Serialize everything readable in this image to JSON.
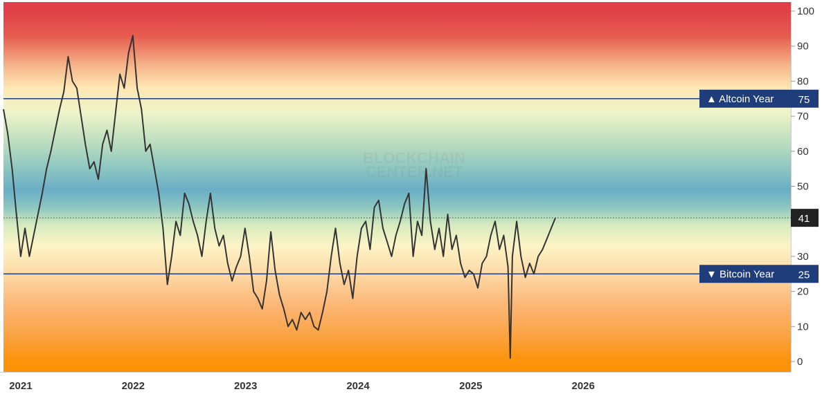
{
  "chart_data": {
    "type": "line",
    "title": "",
    "xlabel": "",
    "ylabel": "",
    "ylim": [
      0,
      100
    ],
    "xlim": [
      "2020-11-15",
      "2027-11-15"
    ],
    "y_ticks": [
      "0",
      "10",
      "20",
      "30",
      "40",
      "50",
      "60",
      "70",
      "80",
      "90",
      "100"
    ],
    "x_ticks": [
      {
        "date": "2021-01-01",
        "label": "2021"
      },
      {
        "date": "2022-01-01",
        "label": "2022"
      },
      {
        "date": "2023-01-01",
        "label": "2023"
      },
      {
        "date": "2024-01-01",
        "label": "2024"
      },
      {
        "date": "2025-01-01",
        "label": "2025"
      },
      {
        "date": "2026-01-01",
        "label": "2026"
      }
    ],
    "grid": false,
    "background_gradient": [
      {
        "value": 100,
        "color": "#e04048"
      },
      {
        "value": 93,
        "color": "#e65b4f"
      },
      {
        "value": 84,
        "color": "#f6b98c"
      },
      {
        "value": 78,
        "color": "#fde8b4"
      },
      {
        "value": 71,
        "color": "#eef4c8"
      },
      {
        "value": 62,
        "color": "#b9dcbf"
      },
      {
        "value": 55,
        "color": "#8cc6c2"
      },
      {
        "value": 49,
        "color": "#6aaec6"
      },
      {
        "value": 44,
        "color": "#8cc6c0"
      },
      {
        "value": 39,
        "color": "#d6ebbe"
      },
      {
        "value": 33,
        "color": "#fdf4c6"
      },
      {
        "value": 25,
        "color": "#fdd9a6"
      },
      {
        "value": 16,
        "color": "#fcb676"
      },
      {
        "value": 7,
        "color": "#fba240"
      },
      {
        "value": 0,
        "color": "#fb9208"
      }
    ],
    "reference_lines": [
      {
        "value": 75,
        "label": "▲ Altcoin Year",
        "value_label": "75",
        "style": "solid",
        "color": "#1f3d7a"
      },
      {
        "value": 25,
        "label": "▼ Bitcoin Year",
        "value_label": "25",
        "style": "solid",
        "color": "#1f3d7a"
      }
    ],
    "current_value": {
      "value": 41,
      "label": "41",
      "style": "dotted"
    },
    "watermark": [
      "BLOCKCHAIN",
      "CENTER.NET"
    ],
    "series": [
      {
        "color": "#333333",
        "points": [
          [
            "2020-11-15",
            72
          ],
          [
            "2020-11-29",
            65
          ],
          [
            "2020-12-13",
            55
          ],
          [
            "2020-12-27",
            42
          ],
          [
            "2021-01-10",
            30
          ],
          [
            "2021-01-24",
            38
          ],
          [
            "2021-02-07",
            30
          ],
          [
            "2021-02-21",
            36
          ],
          [
            "2021-03-07",
            42
          ],
          [
            "2021-03-21",
            48
          ],
          [
            "2021-04-04",
            55
          ],
          [
            "2021-04-18",
            60
          ],
          [
            "2021-05-02",
            66
          ],
          [
            "2021-05-16",
            72
          ],
          [
            "2021-05-30",
            77
          ],
          [
            "2021-06-13",
            87
          ],
          [
            "2021-06-27",
            80
          ],
          [
            "2021-07-11",
            78
          ],
          [
            "2021-07-25",
            70
          ],
          [
            "2021-08-08",
            62
          ],
          [
            "2021-08-22",
            55
          ],
          [
            "2021-09-05",
            57
          ],
          [
            "2021-09-19",
            52
          ],
          [
            "2021-10-03",
            62
          ],
          [
            "2021-10-17",
            66
          ],
          [
            "2021-10-31",
            60
          ],
          [
            "2021-11-14",
            71
          ],
          [
            "2021-11-28",
            82
          ],
          [
            "2021-12-12",
            78
          ],
          [
            "2021-12-26",
            88
          ],
          [
            "2022-01-09",
            93
          ],
          [
            "2022-01-23",
            78
          ],
          [
            "2022-02-06",
            72
          ],
          [
            "2022-02-20",
            60
          ],
          [
            "2022-03-06",
            62
          ],
          [
            "2022-03-20",
            55
          ],
          [
            "2022-04-03",
            48
          ],
          [
            "2022-04-17",
            38
          ],
          [
            "2022-05-01",
            22
          ],
          [
            "2022-05-15",
            30
          ],
          [
            "2022-05-29",
            40
          ],
          [
            "2022-06-12",
            36
          ],
          [
            "2022-06-26",
            48
          ],
          [
            "2022-07-10",
            45
          ],
          [
            "2022-07-24",
            40
          ],
          [
            "2022-08-07",
            36
          ],
          [
            "2022-08-21",
            30
          ],
          [
            "2022-09-04",
            40
          ],
          [
            "2022-09-18",
            48
          ],
          [
            "2022-10-02",
            38
          ],
          [
            "2022-10-16",
            33
          ],
          [
            "2022-10-30",
            36
          ],
          [
            "2022-11-13",
            28
          ],
          [
            "2022-11-27",
            23
          ],
          [
            "2022-12-11",
            27
          ],
          [
            "2022-12-25",
            30
          ],
          [
            "2023-01-08",
            38
          ],
          [
            "2023-01-22",
            30
          ],
          [
            "2023-02-05",
            20
          ],
          [
            "2023-02-19",
            18
          ],
          [
            "2023-03-05",
            15
          ],
          [
            "2023-03-19",
            23
          ],
          [
            "2023-04-02",
            37
          ],
          [
            "2023-04-16",
            26
          ],
          [
            "2023-04-30",
            19
          ],
          [
            "2023-05-14",
            15
          ],
          [
            "2023-05-28",
            10
          ],
          [
            "2023-06-11",
            12
          ],
          [
            "2023-06-25",
            9
          ],
          [
            "2023-07-09",
            14
          ],
          [
            "2023-07-23",
            12
          ],
          [
            "2023-08-06",
            14
          ],
          [
            "2023-08-20",
            10
          ],
          [
            "2023-09-03",
            9
          ],
          [
            "2023-09-17",
            14
          ],
          [
            "2023-10-01",
            20
          ],
          [
            "2023-10-15",
            30
          ],
          [
            "2023-10-29",
            38
          ],
          [
            "2023-11-12",
            28
          ],
          [
            "2023-11-26",
            22
          ],
          [
            "2023-12-10",
            26
          ],
          [
            "2023-12-24",
            18
          ],
          [
            "2024-01-07",
            30
          ],
          [
            "2024-01-21",
            38
          ],
          [
            "2024-02-04",
            40
          ],
          [
            "2024-02-18",
            32
          ],
          [
            "2024-03-03",
            44
          ],
          [
            "2024-03-17",
            46
          ],
          [
            "2024-03-31",
            38
          ],
          [
            "2024-04-14",
            34
          ],
          [
            "2024-04-28",
            30
          ],
          [
            "2024-05-12",
            36
          ],
          [
            "2024-05-26",
            40
          ],
          [
            "2024-06-09",
            45
          ],
          [
            "2024-06-23",
            48
          ],
          [
            "2024-07-07",
            30
          ],
          [
            "2024-07-21",
            40
          ],
          [
            "2024-08-04",
            36
          ],
          [
            "2024-08-18",
            55
          ],
          [
            "2024-09-01",
            40
          ],
          [
            "2024-09-15",
            32
          ],
          [
            "2024-09-29",
            38
          ],
          [
            "2024-10-13",
            30
          ],
          [
            "2024-10-27",
            42
          ],
          [
            "2024-11-10",
            32
          ],
          [
            "2024-11-24",
            36
          ],
          [
            "2024-12-08",
            28
          ],
          [
            "2024-12-22",
            24
          ],
          [
            "2025-01-05",
            26
          ],
          [
            "2025-01-19",
            25
          ],
          [
            "2025-02-02",
            21
          ],
          [
            "2025-02-16",
            28
          ],
          [
            "2025-03-02",
            30
          ],
          [
            "2025-03-16",
            36
          ],
          [
            "2025-03-30",
            40
          ],
          [
            "2025-04-13",
            32
          ],
          [
            "2025-04-27",
            36
          ],
          [
            "2025-05-11",
            27
          ],
          [
            "2025-05-18",
            1
          ],
          [
            "2025-05-25",
            30
          ],
          [
            "2025-06-08",
            40
          ],
          [
            "2025-06-22",
            30
          ],
          [
            "2025-07-06",
            24
          ],
          [
            "2025-07-20",
            28
          ],
          [
            "2025-08-03",
            25
          ],
          [
            "2025-08-17",
            30
          ],
          [
            "2025-08-31",
            32
          ],
          [
            "2025-09-14",
            35
          ],
          [
            "2025-09-28",
            38
          ],
          [
            "2025-10-12",
            41
          ]
        ]
      }
    ]
  }
}
